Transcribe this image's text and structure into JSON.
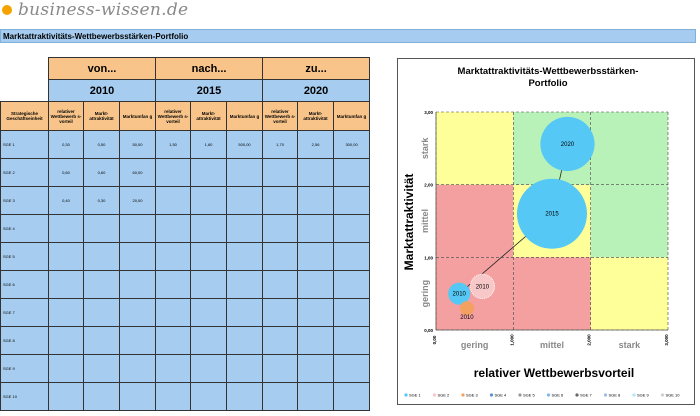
{
  "logo": {
    "text": "business-wissen.de"
  },
  "page_title": "Marktattraktivitäts-Wettbewerbsstärken-Portfolio",
  "table": {
    "periods": [
      {
        "label": "von...",
        "year": "2010"
      },
      {
        "label": "nach...",
        "year": "2015"
      },
      {
        "label": "zu...",
        "year": "2020"
      }
    ],
    "row_header": "Strategische Geschäftseinheit",
    "col_headers": [
      "relativer Wettbewerb s-vorteil",
      "Markt-attraktivität",
      "Marktumfan g"
    ],
    "rows": [
      {
        "name": "SGE 1",
        "cells": [
          "0,30",
          "0,50",
          "50,00",
          "1,50",
          "1,60",
          "500,00",
          "1,70",
          "2,56",
          "300,00"
        ]
      },
      {
        "name": "SGE 2",
        "cells": [
          "0,60",
          "0,60",
          "60,00",
          "",
          "",
          "",
          "",
          "",
          ""
        ]
      },
      {
        "name": "SGE 3",
        "cells": [
          "0,40",
          "0,30",
          "20,00",
          "",
          "",
          "",
          "",
          "",
          ""
        ]
      },
      {
        "name": "SGE 4",
        "cells": [
          "",
          "",
          "",
          "",
          "",
          "",
          "",
          "",
          ""
        ]
      },
      {
        "name": "SGE 5",
        "cells": [
          "",
          "",
          "",
          "",
          "",
          "",
          "",
          "",
          ""
        ]
      },
      {
        "name": "SGE 6",
        "cells": [
          "",
          "",
          "",
          "",
          "",
          "",
          "",
          "",
          ""
        ]
      },
      {
        "name": "SGE 7",
        "cells": [
          "",
          "",
          "",
          "",
          "",
          "",
          "",
          "",
          ""
        ]
      },
      {
        "name": "SGE 8",
        "cells": [
          "",
          "",
          "",
          "",
          "",
          "",
          "",
          "",
          ""
        ]
      },
      {
        "name": "SGE 9",
        "cells": [
          "",
          "",
          "",
          "",
          "",
          "",
          "",
          "",
          ""
        ]
      },
      {
        "name": "SGE 10",
        "cells": [
          "",
          "",
          "",
          "",
          "",
          "",
          "",
          "",
          ""
        ]
      }
    ]
  },
  "chart_data": {
    "type": "scatter",
    "title": "Marktattraktivitäts-Wettbewerbsstärken-Portfolio",
    "xlabel": "relativer Wettbewerbsvorteil",
    "ylabel": "Marktattraktivität",
    "xlim": [
      0,
      3
    ],
    "ylim": [
      0,
      3
    ],
    "x_ticks": [
      "0,00",
      "1,000",
      "2,000",
      "3,000"
    ],
    "y_ticks": [
      "0,00",
      "1,00",
      "2,00",
      "3,00"
    ],
    "x_category_labels": [
      "gering",
      "mittel",
      "stark"
    ],
    "y_category_labels": [
      "gering",
      "mittel",
      "stark"
    ],
    "zone_colors": [
      [
        "#f4a0a0",
        "#f4a0a0",
        "#ffff99"
      ],
      [
        "#f4a0a0",
        "#ffff99",
        "#b9f2b9"
      ],
      [
        "#ffff99",
        "#b9f2b9",
        "#b9f2b9"
      ]
    ],
    "bubbles": [
      {
        "series": "SGE 1",
        "label": "2010",
        "x": 0.3,
        "y": 0.5,
        "size": 50,
        "color": "#55c8f5",
        "style": "solid"
      },
      {
        "series": "SGE 1",
        "label": "2015",
        "x": 1.5,
        "y": 1.6,
        "size": 500,
        "color": "#55c8f5",
        "style": "solid"
      },
      {
        "series": "SGE 1",
        "label": "2020",
        "x": 1.7,
        "y": 2.56,
        "size": 300,
        "color": "#55c8f5",
        "style": "solid"
      },
      {
        "series": "SGE 2",
        "label": "2010",
        "x": 0.6,
        "y": 0.6,
        "size": 60,
        "color": "#f8c8c8",
        "style": "dotted"
      },
      {
        "series": "SGE 3",
        "label": "2010",
        "x": 0.4,
        "y": 0.3,
        "size": 20,
        "color": "#f4a060",
        "style": "solid"
      }
    ],
    "trajectory": {
      "series": "SGE 1",
      "points": [
        [
          0.3,
          0.5
        ],
        [
          1.5,
          1.6
        ],
        [
          1.7,
          2.56
        ]
      ]
    },
    "legend": [
      "SGE 1",
      "SGE 2",
      "SGE 3",
      "SGE 4",
      "SGE 5",
      "SGE 6",
      "SGE 7",
      "SGE 8",
      "SGE 9",
      "SGE 10"
    ],
    "legend_colors": [
      "#55c8f5",
      "#f8c8c8",
      "#f4a060",
      "#5a8fd0",
      "#999999",
      "#7fb8e8",
      "#666666",
      "#9bbbe8",
      "#b5e6f8",
      "#d0d0d0"
    ],
    "legend_position": "bottom"
  }
}
